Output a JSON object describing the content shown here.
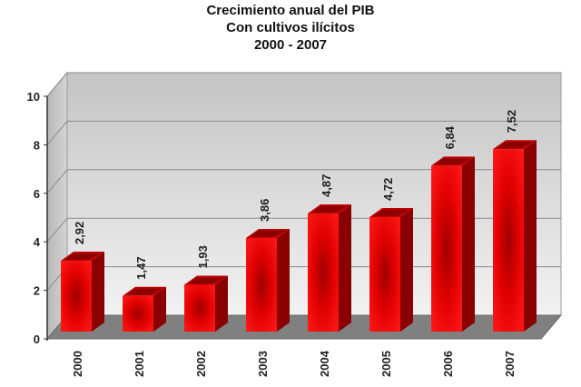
{
  "chart_data": {
    "type": "bar",
    "title_lines": [
      "Crecimiento anual del PIB",
      "Con cultivos ilícitos",
      "2000 - 2007"
    ],
    "categories": [
      "2000",
      "2001",
      "2002",
      "2003",
      "2004",
      "2005",
      "2006",
      "2007"
    ],
    "values": [
      2.92,
      1.47,
      1.93,
      3.86,
      4.87,
      4.72,
      6.84,
      7.52
    ],
    "value_labels": [
      "2,92",
      "1,47",
      "1,93",
      "3,86",
      "4,87",
      "4,72",
      "6,84",
      "7,52"
    ],
    "yticks": [
      "0",
      "2",
      "4",
      "6",
      "8",
      "10"
    ],
    "ylim": [
      0,
      10
    ],
    "grid": true,
    "legend": "none",
    "style": "3d",
    "colors": {
      "bar": "#e00000",
      "bar_dark": "#8a0000",
      "floor": "#808080"
    }
  }
}
